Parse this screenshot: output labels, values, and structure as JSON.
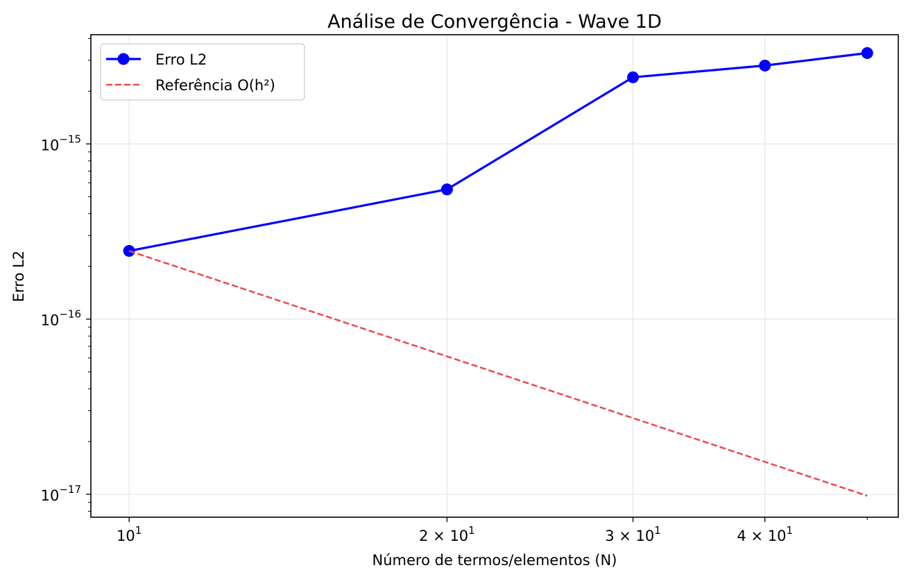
{
  "chart_data": {
    "type": "line",
    "title": "Análise de Convergência - Wave 1D",
    "xlabel": "Número de termos/elementos (N)",
    "ylabel": "Erro L2",
    "x_scale": "log",
    "y_scale": "log",
    "xlim": [
      9.2,
      53.5
    ],
    "ylim": [
      7.4e-18,
      4.2e-15
    ],
    "x_ticks": [
      {
        "value": 10,
        "mant": "",
        "base": "10",
        "exp": "1"
      },
      {
        "value": 20,
        "mant": "2 × ",
        "base": "10",
        "exp": "1"
      },
      {
        "value": 30,
        "mant": "3 × ",
        "base": "10",
        "exp": "1"
      },
      {
        "value": 40,
        "mant": "4 × ",
        "base": "10",
        "exp": "1"
      }
    ],
    "y_ticks": [
      {
        "value": 1e-15,
        "base": "10",
        "exp": "−15"
      },
      {
        "value": 1e-16,
        "base": "10",
        "exp": "−16"
      },
      {
        "value": 1e-17,
        "base": "10",
        "exp": "−17"
      }
    ],
    "grid": true,
    "legend_position": "top-left",
    "series": [
      {
        "name": "Erro L2",
        "style": "solid-marker",
        "color": "#0000ff",
        "x": [
          10,
          20,
          30,
          40,
          50
        ],
        "y": [
          2.45e-16,
          5.5e-16,
          2.4e-15,
          2.8e-15,
          3.3e-15
        ]
      },
      {
        "name": "Referência O(h²)",
        "style": "dashed",
        "color": "#f04848",
        "x": [
          10,
          50
        ],
        "y": [
          2.45e-16,
          9.8e-18
        ]
      }
    ]
  }
}
